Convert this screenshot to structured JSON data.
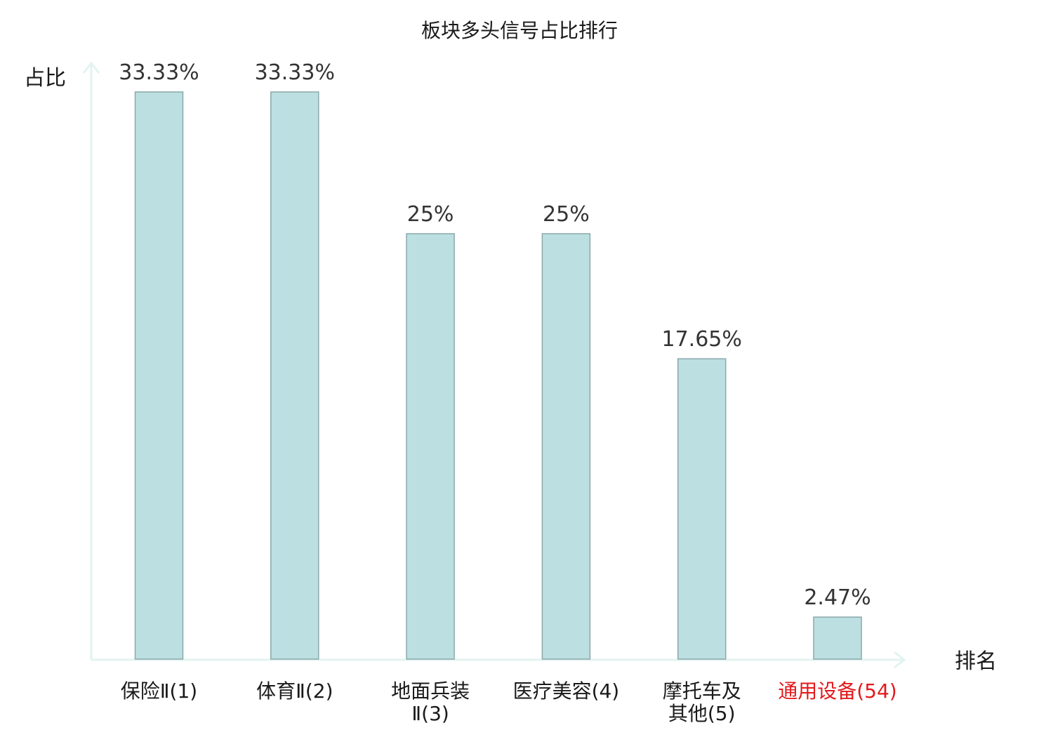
{
  "chart_data": {
    "type": "bar",
    "title": "板块多头信号占比排行",
    "ylabel": "占比",
    "xlabel": "排名",
    "categories": [
      [
        "保险Ⅱ(1)"
      ],
      [
        "体育Ⅱ(2)"
      ],
      [
        "地面兵装",
        "Ⅱ(3)"
      ],
      [
        "医疗美容(4)"
      ],
      [
        "摩托车及",
        "其他(5)"
      ],
      [
        "通用设备(54)"
      ]
    ],
    "values": [
      33.33,
      33.33,
      25,
      25,
      17.65,
      2.47
    ],
    "value_labels": [
      "33.33%",
      "33.33%",
      "25%",
      "25%",
      "17.65%",
      "2.47%"
    ],
    "highlight_index": 5,
    "ylim": [
      0,
      33.33
    ],
    "grid": false,
    "colors": {
      "bar_fill": "#bce0e2",
      "bar_stroke": "#8aa8aa",
      "axis": "#e2f3f0",
      "highlight_text": "#e3191c"
    }
  }
}
